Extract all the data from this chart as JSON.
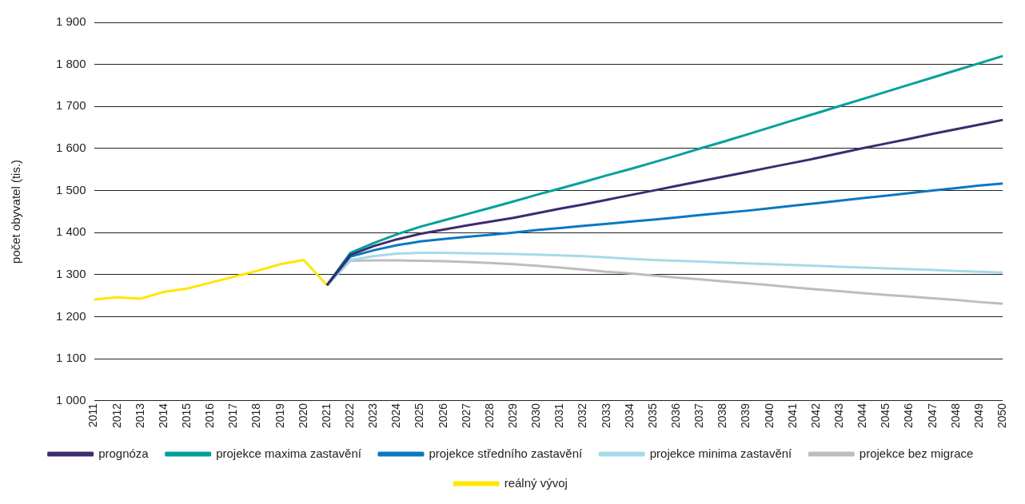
{
  "chart_data": {
    "type": "line",
    "ylabel": "počet obyvatel (tis.)",
    "categories": [
      "2011",
      "2012",
      "2013",
      "2014",
      "2015",
      "2016",
      "2017",
      "2018",
      "2019",
      "2020",
      "2021",
      "2022",
      "2023",
      "2024",
      "2025",
      "2026",
      "2027",
      "2028",
      "2029",
      "2030",
      "2031",
      "2032",
      "2033",
      "2034",
      "2035",
      "2036",
      "2037",
      "2038",
      "2039",
      "2040",
      "2041",
      "2042",
      "2043",
      "2044",
      "2045",
      "2046",
      "2047",
      "2048",
      "2049",
      "2050"
    ],
    "series": [
      {
        "name": "prognóza",
        "color": "#3f2a6e",
        "values": [
          null,
          null,
          null,
          null,
          null,
          null,
          null,
          null,
          null,
          null,
          1275,
          1347,
          1368,
          1384,
          1397,
          1407,
          1417,
          1426,
          1435,
          1446,
          1457,
          1467,
          1478,
          1489,
          1500,
          1511,
          1522,
          1533,
          1544,
          1555,
          1566,
          1577,
          1589,
          1601,
          1612,
          1623,
          1635,
          1646,
          1657,
          1668
        ]
      },
      {
        "name": "projekce maxima zastavění",
        "color": "#00a19a",
        "values": [
          null,
          null,
          null,
          null,
          null,
          null,
          null,
          null,
          null,
          null,
          1275,
          1352,
          1375,
          1396,
          1414,
          1429,
          1444,
          1459,
          1474,
          1490,
          1505,
          1520,
          1536,
          1551,
          1567,
          1583,
          1600,
          1616,
          1633,
          1650,
          1667,
          1684,
          1701,
          1718,
          1735,
          1752,
          1769,
          1786,
          1803,
          1820
        ]
      },
      {
        "name": "projekce středního zastavění",
        "color": "#0a78c2",
        "values": [
          null,
          null,
          null,
          null,
          null,
          null,
          null,
          null,
          null,
          null,
          1275,
          1343,
          1358,
          1370,
          1379,
          1385,
          1390,
          1395,
          1400,
          1406,
          1411,
          1416,
          1421,
          1426,
          1431,
          1436,
          1442,
          1447,
          1452,
          1458,
          1464,
          1470,
          1476,
          1482,
          1488,
          1494,
          1500,
          1506,
          1512,
          1517
        ]
      },
      {
        "name": "projekce minima zastavění",
        "color": "#a6d9e8",
        "values": [
          null,
          null,
          null,
          null,
          null,
          null,
          null,
          null,
          null,
          null,
          1275,
          1335,
          1344,
          1350,
          1352,
          1352,
          1351,
          1350,
          1349,
          1348,
          1346,
          1344,
          1341,
          1338,
          1335,
          1333,
          1331,
          1329,
          1327,
          1325,
          1323,
          1321,
          1319,
          1317,
          1315,
          1313,
          1311,
          1309,
          1307,
          1305
        ]
      },
      {
        "name": "projekce bez migrace",
        "color": "#bdbdbd",
        "values": [
          null,
          null,
          null,
          null,
          null,
          null,
          null,
          null,
          null,
          null,
          1275,
          1333,
          1334,
          1334,
          1333,
          1332,
          1330,
          1328,
          1325,
          1321,
          1317,
          1312,
          1307,
          1303,
          1298,
          1293,
          1289,
          1284,
          1280,
          1275,
          1270,
          1265,
          1261,
          1256,
          1252,
          1248,
          1244,
          1240,
          1235,
          1231
        ]
      },
      {
        "name": "reálný vývoj",
        "color": "#ffe600",
        "values": [
          1241,
          1246,
          1243,
          1259,
          1267,
          1281,
          1295,
          1309,
          1325,
          1335,
          1275,
          null,
          null,
          null,
          null,
          null,
          null,
          null,
          null,
          null,
          null,
          null,
          null,
          null,
          null,
          null,
          null,
          null,
          null,
          null,
          null,
          null,
          null,
          null,
          null,
          null,
          null,
          null,
          null,
          null
        ]
      }
    ],
    "ylim": [
      1000,
      1900
    ],
    "yticks": [
      {
        "value": 1000,
        "label": "1 000"
      },
      {
        "value": 1100,
        "label": "1 100"
      },
      {
        "value": 1200,
        "label": "1 200"
      },
      {
        "value": 1300,
        "label": "1 300"
      },
      {
        "value": 1400,
        "label": "1 400"
      },
      {
        "value": 1500,
        "label": "1 500"
      },
      {
        "value": 1600,
        "label": "1 600"
      },
      {
        "value": 1700,
        "label": "1 700"
      },
      {
        "value": 1800,
        "label": "1 800"
      },
      {
        "value": 1900,
        "label": "1 900"
      }
    ],
    "grid": "y",
    "legend": "bottom",
    "marker": "none",
    "line_style": "solid"
  }
}
